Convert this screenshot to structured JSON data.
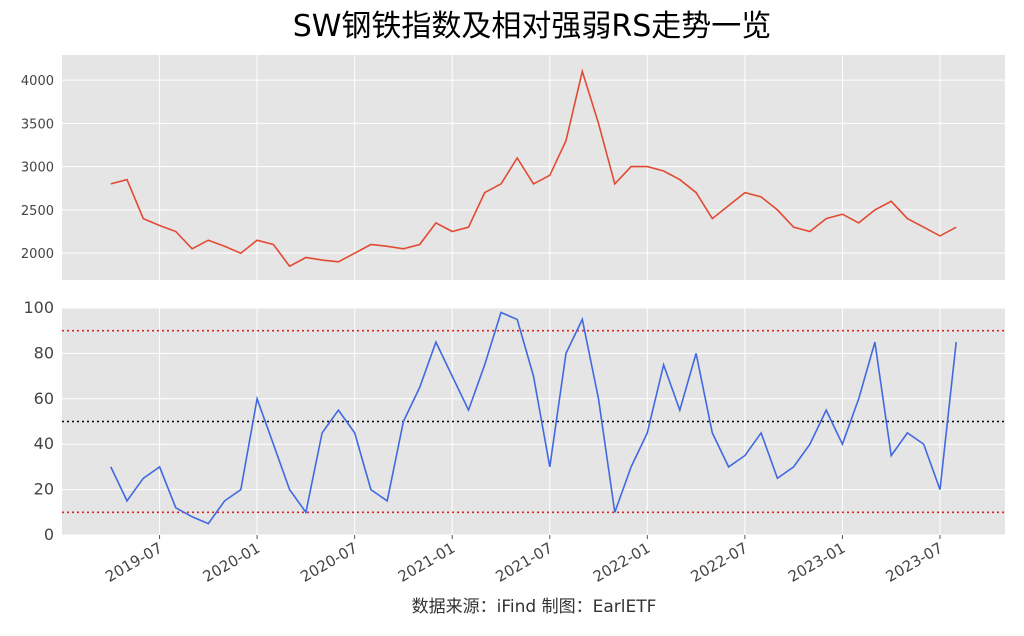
{
  "title": "SW钢铁指数及相对强弱RS走势一览",
  "source": "数据来源：iFind 制图：EarlETF",
  "chart_data": [
    {
      "type": "line",
      "x": [
        "2019-04",
        "2019-05",
        "2019-06",
        "2019-07",
        "2019-08",
        "2019-09",
        "2019-10",
        "2019-11",
        "2019-12",
        "2020-01",
        "2020-02",
        "2020-03",
        "2020-04",
        "2020-05",
        "2020-06",
        "2020-07",
        "2020-08",
        "2020-09",
        "2020-10",
        "2020-11",
        "2020-12",
        "2021-01",
        "2021-02",
        "2021-03",
        "2021-04",
        "2021-05",
        "2021-06",
        "2021-07",
        "2021-08",
        "2021-09",
        "2021-10",
        "2021-11",
        "2021-12",
        "2022-01",
        "2022-02",
        "2022-03",
        "2022-04",
        "2022-05",
        "2022-06",
        "2022-07",
        "2022-08",
        "2022-09",
        "2022-10",
        "2022-11",
        "2022-12",
        "2023-01",
        "2023-02",
        "2023-03",
        "2023-04",
        "2023-05",
        "2023-06",
        "2023-07",
        "2023-08"
      ],
      "series": [
        {
          "name": "SW钢铁",
          "color": "#e24a33",
          "values": [
            2800,
            2850,
            2400,
            2320,
            2250,
            2050,
            2150,
            2080,
            2000,
            2150,
            2100,
            1850,
            1950,
            1920,
            1900,
            2000,
            2100,
            2080,
            2050,
            2100,
            2350,
            2250,
            2300,
            2700,
            2800,
            3100,
            2800,
            2900,
            3300,
            4100,
            3500,
            2800,
            3000,
            3000,
            2950,
            2850,
            2700,
            2400,
            2550,
            2700,
            2650,
            2500,
            2300,
            2250,
            2400,
            2450,
            2350,
            2500,
            2600,
            2400,
            2300,
            2200,
            2300
          ]
        }
      ],
      "xlim": [
        "2019-01",
        "2023-11"
      ],
      "ylim": [
        1690,
        4290
      ],
      "yticks": [
        2000,
        2500,
        3000,
        3500,
        4000
      ],
      "grid": true
    },
    {
      "type": "line",
      "x": [
        "2019-04",
        "2019-05",
        "2019-06",
        "2019-07",
        "2019-08",
        "2019-09",
        "2019-10",
        "2019-11",
        "2019-12",
        "2020-01",
        "2020-02",
        "2020-03",
        "2020-04",
        "2020-05",
        "2020-06",
        "2020-07",
        "2020-08",
        "2020-09",
        "2020-10",
        "2020-11",
        "2020-12",
        "2021-01",
        "2021-02",
        "2021-03",
        "2021-04",
        "2021-05",
        "2021-06",
        "2021-07",
        "2021-08",
        "2021-09",
        "2021-10",
        "2021-11",
        "2021-12",
        "2022-01",
        "2022-02",
        "2022-03",
        "2022-04",
        "2022-05",
        "2022-06",
        "2022-07",
        "2022-08",
        "2022-09",
        "2022-10",
        "2022-11",
        "2022-12",
        "2023-01",
        "2023-02",
        "2023-03",
        "2023-04",
        "2023-05",
        "2023-06",
        "2023-07",
        "2023-08"
      ],
      "series": [
        {
          "name": "RS",
          "color": "#4169e1",
          "values": [
            30,
            15,
            25,
            30,
            12,
            8,
            5,
            15,
            20,
            60,
            40,
            20,
            10,
            45,
            55,
            45,
            20,
            15,
            50,
            65,
            85,
            70,
            55,
            75,
            98,
            95,
            70,
            30,
            80,
            95,
            60,
            10,
            30,
            45,
            75,
            55,
            80,
            45,
            30,
            35,
            45,
            25,
            30,
            40,
            55,
            40,
            60,
            85,
            35,
            45,
            40,
            20,
            85
          ]
        }
      ],
      "hlines": [
        {
          "value": 90,
          "color": "#d62728"
        },
        {
          "value": 50,
          "color": "#000000"
        },
        {
          "value": 10,
          "color": "#d62728"
        }
      ],
      "xlim": [
        "2019-01",
        "2023-11"
      ],
      "xticks": [
        "2019-07",
        "2020-01",
        "2020-07",
        "2021-01",
        "2021-07",
        "2022-01",
        "2022-07",
        "2023-01",
        "2023-07"
      ],
      "ylim": [
        0,
        100
      ],
      "yticks": [
        0,
        20,
        40,
        60,
        80,
        100
      ],
      "grid": true
    }
  ]
}
